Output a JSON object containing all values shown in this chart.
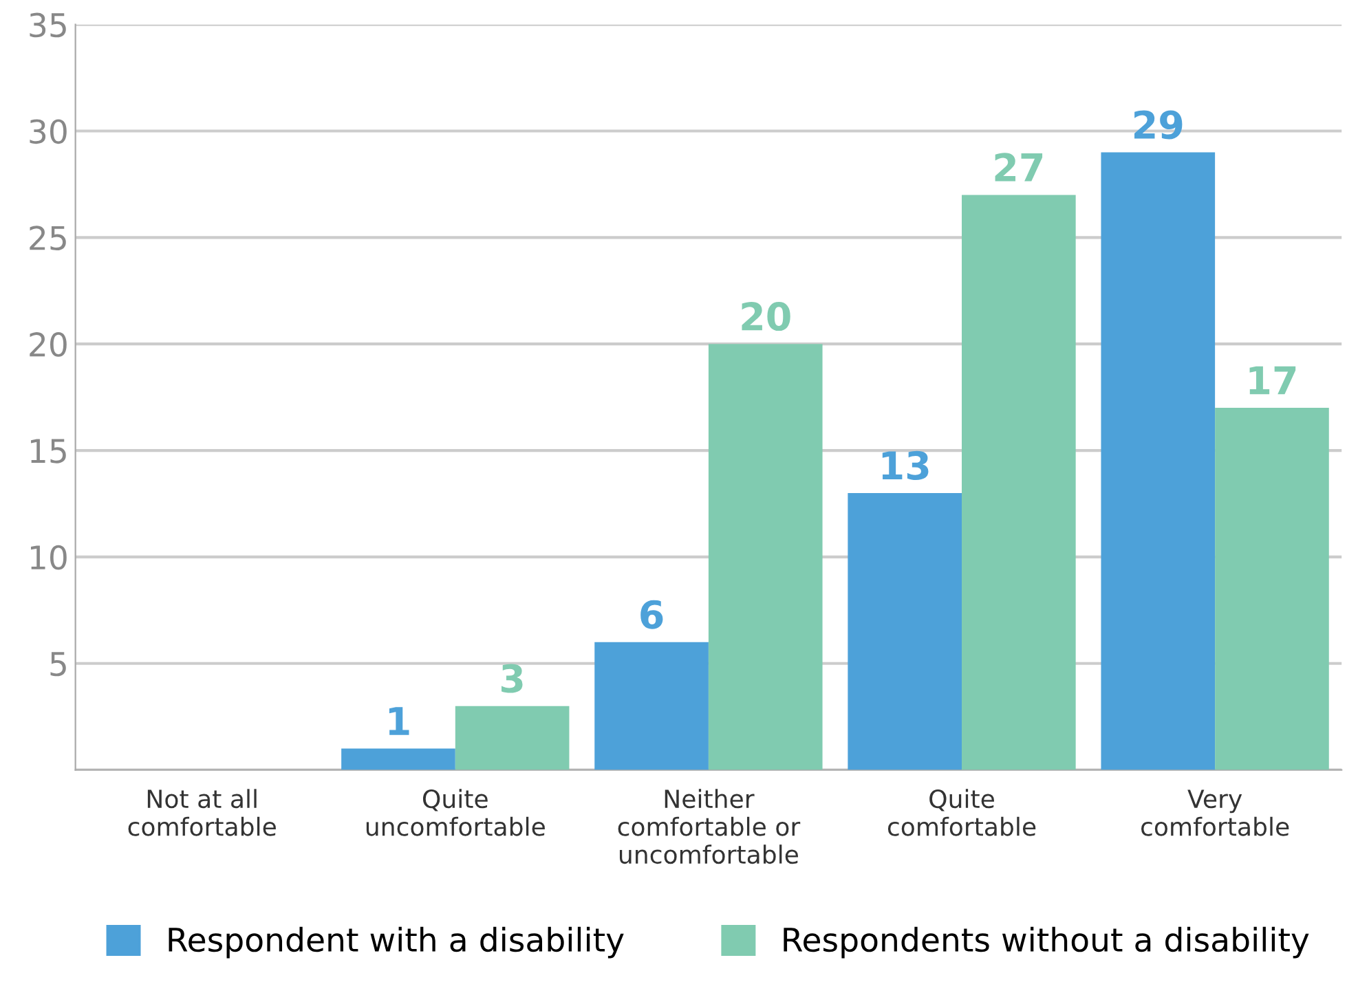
{
  "chart_data": {
    "type": "bar",
    "categories": [
      "Not at all\ncomfortable",
      "Quite\nuncomfortable",
      "Neither\ncomfortable or\nuncomfortable",
      "Quite\ncomfortable",
      "Very\ncomfortable"
    ],
    "series": [
      {
        "name": "Respondent with a disability",
        "color": "#4da1d9",
        "values": [
          0,
          1,
          6,
          13,
          29
        ],
        "value_labels": [
          null,
          "1",
          "6",
          "13",
          "29"
        ]
      },
      {
        "name": "Respondents without a disability",
        "color": "#80cbb0",
        "values": [
          0,
          3,
          20,
          27,
          17
        ],
        "value_labels": [
          null,
          "3",
          "20",
          "27",
          "17"
        ]
      }
    ],
    "ylim": [
      0,
      35
    ],
    "yticks": [
      {
        "value": 0,
        "label": null
      },
      5,
      10,
      15,
      20,
      25,
      30,
      35
    ],
    "grid": "y",
    "legend": "bottom"
  }
}
